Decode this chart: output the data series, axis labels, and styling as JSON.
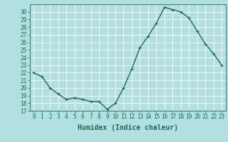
{
  "x": [
    0,
    1,
    2,
    3,
    4,
    5,
    6,
    7,
    8,
    9,
    10,
    11,
    12,
    13,
    14,
    15,
    16,
    17,
    18,
    19,
    20,
    21,
    22,
    23
  ],
  "y": [
    22.0,
    21.5,
    20.0,
    19.2,
    18.5,
    18.7,
    18.5,
    18.2,
    18.2,
    17.2,
    18.0,
    20.0,
    22.5,
    25.3,
    26.8,
    28.5,
    30.6,
    30.3,
    30.0,
    29.2,
    27.5,
    25.8,
    24.5,
    23.0
  ],
  "line_color": "#1a6b5a",
  "marker": "+",
  "marker_size": 3,
  "bg_color": "#b2e0e0",
  "grid_color": "#ffffff",
  "xlabel": "Humidex (Indice chaleur)",
  "xlim": [
    -0.5,
    23.5
  ],
  "ylim": [
    17,
    31
  ],
  "yticks": [
    17,
    18,
    19,
    20,
    21,
    22,
    23,
    24,
    25,
    26,
    27,
    28,
    29,
    30
  ],
  "xticks": [
    0,
    1,
    2,
    3,
    4,
    5,
    6,
    7,
    8,
    9,
    10,
    11,
    12,
    13,
    14,
    15,
    16,
    17,
    18,
    19,
    20,
    21,
    22,
    23
  ],
  "tick_fontsize": 5.5,
  "label_fontsize": 7,
  "linewidth": 1.0,
  "marker_edge_width": 0.8
}
